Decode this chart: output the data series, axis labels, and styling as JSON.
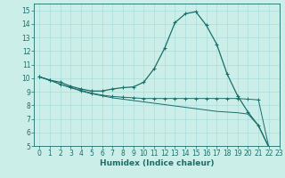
{
  "xlabel": "Humidex (Indice chaleur)",
  "xlim": [
    -0.5,
    23
  ],
  "ylim": [
    5,
    15.5
  ],
  "yticks": [
    5,
    6,
    7,
    8,
    9,
    10,
    11,
    12,
    13,
    14,
    15
  ],
  "xticks": [
    0,
    1,
    2,
    3,
    4,
    5,
    6,
    7,
    8,
    9,
    10,
    11,
    12,
    13,
    14,
    15,
    16,
    17,
    18,
    19,
    20,
    21,
    22,
    23
  ],
  "background_color": "#cceee8",
  "grid_color": "#aadddd",
  "line_color": "#1a6e6a",
  "line1_x": [
    0,
    1,
    2,
    3,
    4,
    5,
    6,
    7,
    8,
    9,
    10,
    11,
    12,
    13,
    14,
    15,
    16,
    17,
    18,
    19,
    20,
    21,
    22,
    23
  ],
  "line1_y": [
    10.1,
    9.85,
    9.7,
    9.4,
    9.2,
    9.05,
    9.05,
    9.2,
    9.3,
    9.35,
    9.7,
    10.7,
    12.2,
    14.1,
    14.75,
    14.9,
    13.9,
    12.5,
    10.3,
    8.7,
    7.5,
    6.5,
    4.9,
    4.8
  ],
  "line2_x": [
    0,
    1,
    2,
    3,
    4,
    5,
    6,
    7,
    8,
    9,
    10,
    11,
    12,
    13,
    14,
    15,
    16,
    17,
    18,
    19,
    20,
    21,
    22,
    23
  ],
  "line2_y": [
    10.1,
    9.85,
    9.55,
    9.3,
    9.1,
    8.9,
    8.75,
    8.65,
    8.6,
    8.55,
    8.5,
    8.5,
    8.5,
    8.5,
    8.5,
    8.5,
    8.5,
    8.5,
    8.5,
    8.5,
    8.45,
    8.4,
    4.9,
    4.8
  ],
  "line3_x": [
    0,
    1,
    2,
    3,
    4,
    5,
    6,
    7,
    8,
    9,
    10,
    11,
    12,
    13,
    14,
    15,
    16,
    17,
    18,
    19,
    20,
    21,
    22,
    23
  ],
  "line3_y": [
    10.1,
    9.85,
    9.55,
    9.3,
    9.05,
    8.85,
    8.7,
    8.55,
    8.45,
    8.35,
    8.25,
    8.15,
    8.05,
    7.95,
    7.85,
    7.75,
    7.65,
    7.55,
    7.5,
    7.45,
    7.35,
    6.5,
    4.9,
    4.8
  ],
  "tick_fontsize": 5.5,
  "label_fontsize": 6.5
}
